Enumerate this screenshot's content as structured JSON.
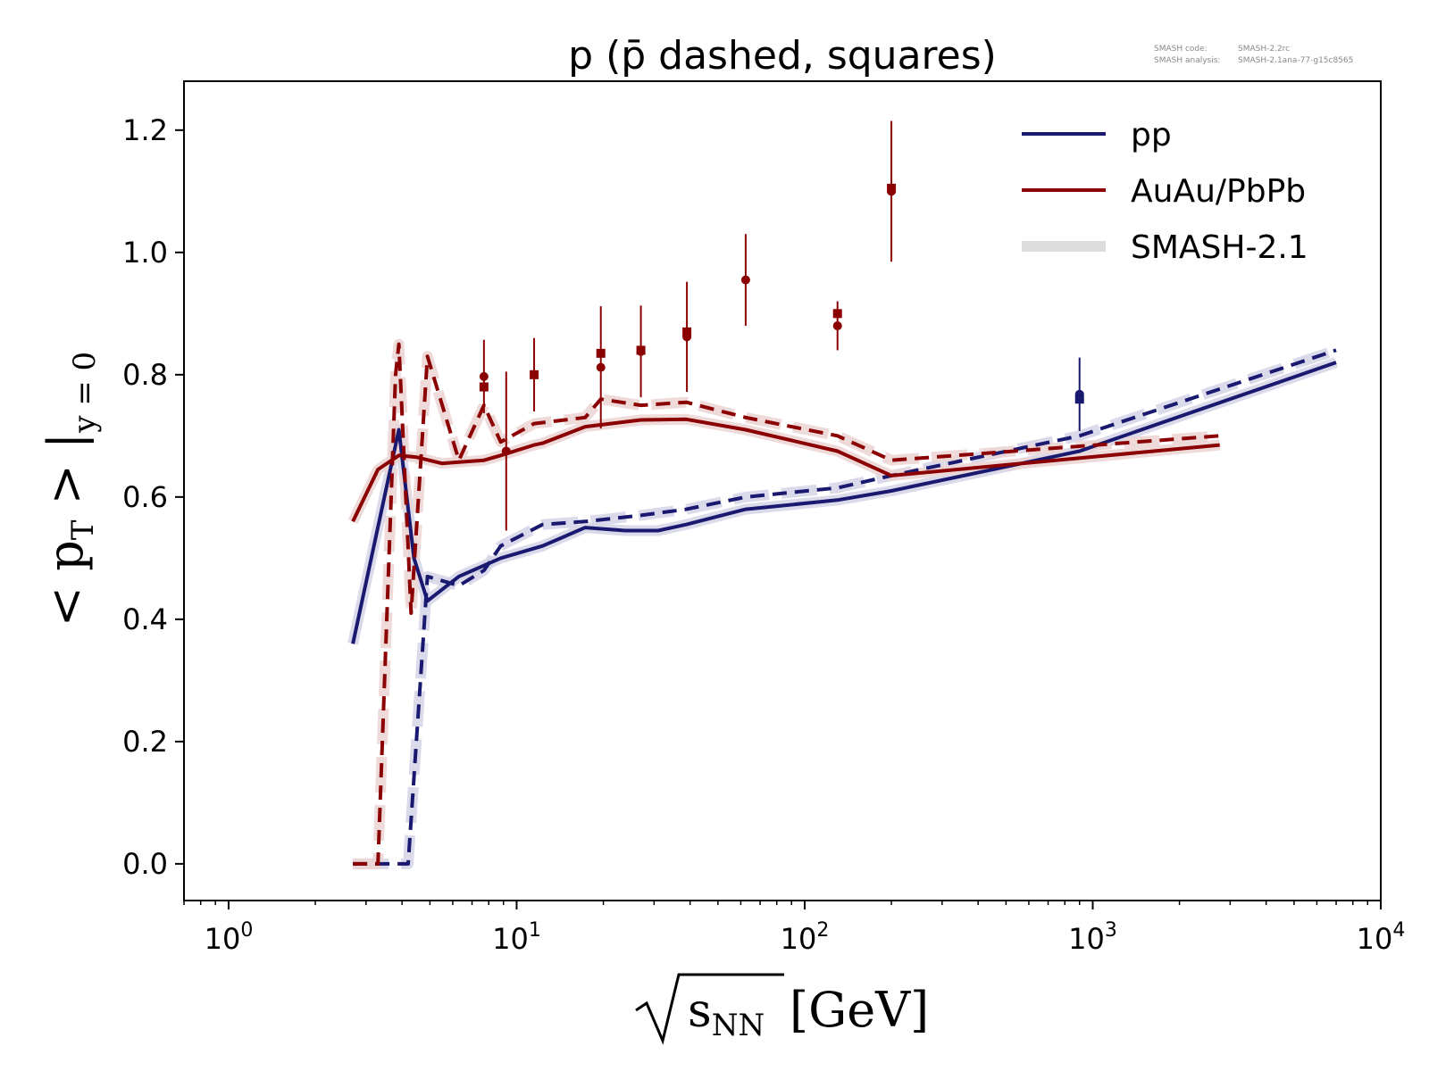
{
  "chart_data": {
    "type": "line",
    "title": "p (p̄ dashed, squares)",
    "xlabel_root": "s",
    "xlabel_sub": "NN",
    "xlabel_unit": "[GeV]",
    "ylabel_main": "< p",
    "ylabel_sub": "T",
    "ylabel_mid": " > |",
    "ylabel_cond": "y = 0",
    "xscale": "log",
    "xlim": [
      0.7,
      10000
    ],
    "ylim": [
      -0.06,
      1.28
    ],
    "grid": false,
    "legend_placement": "top-right",
    "x_ticks": [
      {
        "value": 1,
        "base": "10",
        "exp": "0"
      },
      {
        "value": 10,
        "base": "10",
        "exp": "1"
      },
      {
        "value": 100,
        "base": "10",
        "exp": "2"
      },
      {
        "value": 1000,
        "base": "10",
        "exp": "3"
      },
      {
        "value": 10000,
        "base": "10",
        "exp": "4"
      }
    ],
    "y_ticks": [
      "0.0",
      "0.2",
      "0.4",
      "0.6",
      "0.8",
      "1.0",
      "1.2"
    ],
    "legend": [
      {
        "label": "pp",
        "color": "#191970",
        "style": "line"
      },
      {
        "label": "AuAu/PbPb",
        "color": "#8b0000",
        "style": "line"
      },
      {
        "label": "SMASH-2.1",
        "color": "#dcdcdc",
        "style": "band"
      }
    ],
    "series": [
      {
        "key": "pp_p",
        "color": "#191970",
        "dashed": false,
        "x": [
          2.7,
          3.9,
          4.4,
          4.9,
          6.3,
          8.8,
          12.3,
          17.3,
          23.8,
          31.0,
          38.8,
          62.4,
          130,
          200,
          900,
          7000
        ],
        "y": [
          0.36,
          0.71,
          0.5,
          0.43,
          0.47,
          0.5,
          0.52,
          0.55,
          0.545,
          0.545,
          0.555,
          0.58,
          0.595,
          0.61,
          0.675,
          0.82
        ]
      },
      {
        "key": "pp_pbar",
        "color": "#191970",
        "dashed": true,
        "x": [
          2.7,
          4.2,
          4.9,
          6.3,
          7.7,
          8.8,
          12.3,
          17.3,
          27,
          38.8,
          62.4,
          130,
          200,
          900,
          7000
        ],
        "y": [
          0.0,
          0.0,
          0.47,
          0.455,
          0.48,
          0.52,
          0.555,
          0.56,
          0.57,
          0.58,
          0.6,
          0.615,
          0.635,
          0.7,
          0.84
        ]
      },
      {
        "key": "aa_p",
        "color": "#8b0000",
        "dashed": false,
        "x": [
          2.7,
          3.3,
          3.9,
          4.5,
          5.5,
          6.3,
          7.7,
          8.8,
          11.5,
          12.3,
          17.3,
          27,
          38.8,
          62.4,
          130,
          200,
          2760
        ],
        "y": [
          0.56,
          0.645,
          0.668,
          0.665,
          0.655,
          0.657,
          0.66,
          0.668,
          0.685,
          0.688,
          0.715,
          0.726,
          0.727,
          0.71,
          0.675,
          0.635,
          0.685
        ]
      },
      {
        "key": "aa_pbar",
        "color": "#8b0000",
        "dashed": true,
        "x": [
          2.7,
          3.3,
          3.8,
          3.9,
          4.3,
          4.9,
          6.3,
          7.7,
          8.8,
          11.5,
          17.3,
          19.6,
          27,
          38.8,
          62.4,
          130,
          200,
          2760
        ],
        "y": [
          0.0,
          0.0,
          0.8,
          0.85,
          0.41,
          0.83,
          0.66,
          0.75,
          0.69,
          0.72,
          0.73,
          0.76,
          0.75,
          0.755,
          0.73,
          0.7,
          0.66,
          0.7
        ]
      }
    ],
    "points": [
      {
        "series": "aa_p",
        "marker": "circle",
        "x": 7.7,
        "y": 0.797,
        "err": 0.06
      },
      {
        "series": "aa_pbar",
        "marker": "square",
        "x": 7.7,
        "y": 0.78,
        "err": 0.0
      },
      {
        "series": "aa_p",
        "marker": "circle",
        "x": 9.2,
        "y": 0.675,
        "err": 0.13
      },
      {
        "series": "aa_pbar",
        "marker": "square",
        "x": 11.5,
        "y": 0.8,
        "err": 0.06
      },
      {
        "series": "aa_p",
        "marker": "circle",
        "x": 19.6,
        "y": 0.812,
        "err": 0.1
      },
      {
        "series": "aa_pbar",
        "marker": "square",
        "x": 19.6,
        "y": 0.835,
        "err": 0.0
      },
      {
        "series": "aa_p",
        "marker": "circle",
        "x": 27,
        "y": 0.838,
        "err": 0.075
      },
      {
        "series": "aa_pbar",
        "marker": "square",
        "x": 27,
        "y": 0.84,
        "err": 0.0
      },
      {
        "series": "aa_p",
        "marker": "circle",
        "x": 39,
        "y": 0.862,
        "err": 0.09
      },
      {
        "series": "aa_pbar",
        "marker": "square",
        "x": 39,
        "y": 0.87,
        "err": 0.0
      },
      {
        "series": "aa_p",
        "marker": "circle",
        "x": 62.4,
        "y": 0.955,
        "err": 0.075
      },
      {
        "series": "aa_p",
        "marker": "circle",
        "x": 130,
        "y": 0.88,
        "err": 0.04
      },
      {
        "series": "aa_pbar",
        "marker": "square",
        "x": 130,
        "y": 0.9,
        "err": 0.0
      },
      {
        "series": "aa_p",
        "marker": "circle",
        "x": 200,
        "y": 1.1,
        "err": 0.115
      },
      {
        "series": "aa_pbar",
        "marker": "square",
        "x": 200,
        "y": 1.105,
        "err": 0.0
      },
      {
        "series": "pp_p",
        "marker": "circle",
        "x": 900,
        "y": 0.768,
        "err": 0.06
      },
      {
        "series": "pp_pbar",
        "marker": "square",
        "x": 900,
        "y": 0.76,
        "err": 0.0
      }
    ]
  },
  "credit": {
    "code_label": "SMASH code:",
    "code_value": "SMASH-2.2rc",
    "analysis_label": "SMASH analysis:",
    "analysis_value": "SMASH-2.1ana-77-g15c8565"
  }
}
